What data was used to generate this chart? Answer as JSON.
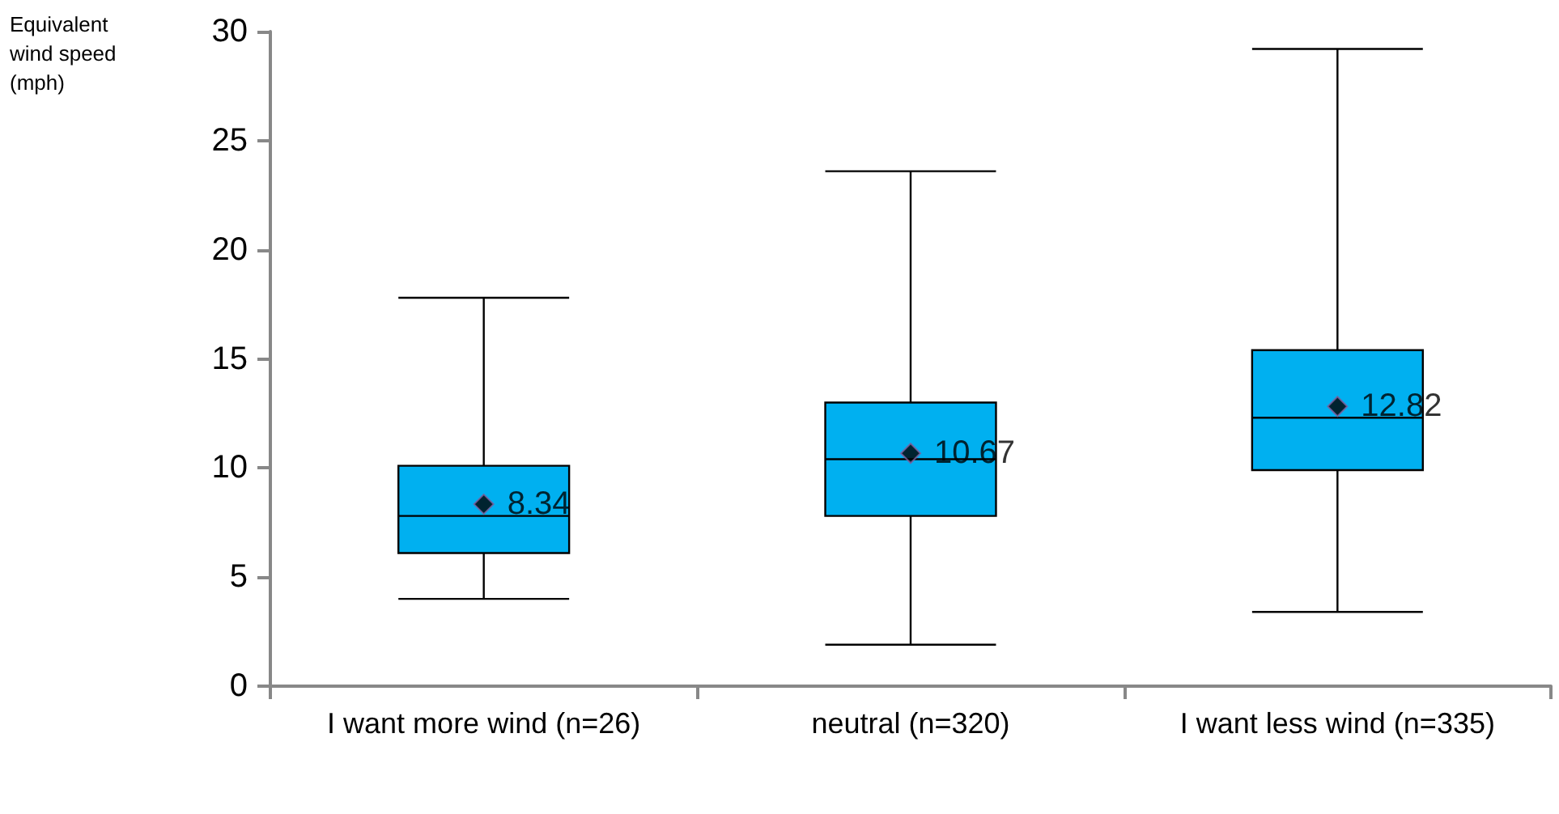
{
  "chart_data": {
    "type": "box",
    "ylabel": "Equivalent wind speed (mph)",
    "categories": [
      "I want more wind (n=26)",
      "neutral (n=320)",
      "I want less wind (n=335)"
    ],
    "series": [
      {
        "color": "#00b0f0",
        "value_labels": [
          "8.34",
          "10.67",
          "12.82"
        ],
        "boxes": [
          {
            "low": 4.0,
            "q1": 6.1,
            "median": 7.8,
            "q3": 10.1,
            "high": 17.8,
            "mean": 8.34
          },
          {
            "low": 1.9,
            "q1": 7.8,
            "median": 10.4,
            "q3": 13.0,
            "high": 23.6,
            "mean": 10.67
          },
          {
            "low": 3.4,
            "q1": 9.9,
            "median": 12.3,
            "q3": 15.4,
            "high": 29.2,
            "mean": 12.82
          }
        ]
      }
    ],
    "ylim": [
      0,
      30
    ],
    "yticks": [
      0,
      5,
      10,
      15,
      20,
      25,
      30
    ],
    "grid": false,
    "marker": "diamond"
  }
}
